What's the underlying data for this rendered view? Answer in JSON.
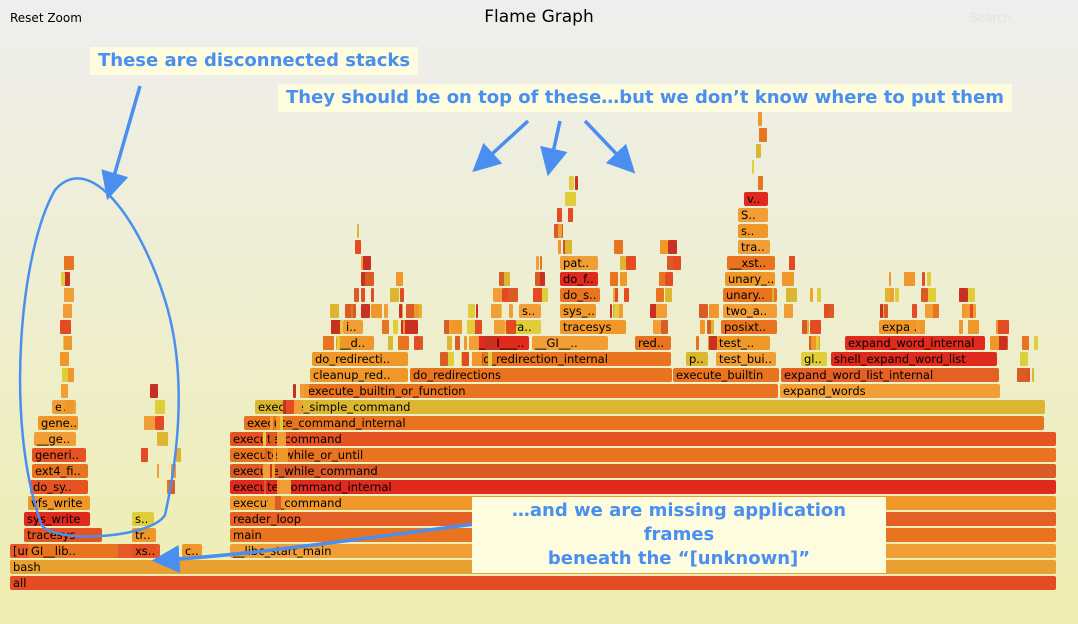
{
  "toolbar": {
    "reset_zoom": "Reset Zoom",
    "search": "Search"
  },
  "title": "Flame Graph",
  "annotations": {
    "disconnected": "These are disconnected stacks",
    "on_top": "They should be on top of these…but we don’t know where to put them",
    "missing_line1": "…and we are missing application frames",
    "missing_line2": "beneath the “[unknown]”"
  },
  "colors": {
    "annotation_text": "#4a8ff0",
    "annotation_bg": "#fdfcde",
    "flame_palette": [
      "#e54b22",
      "#e8741f",
      "#f0972a",
      "#dcb630",
      "#e0cd3a",
      "#c83022",
      "#f29e36",
      "#d95c27"
    ]
  },
  "frames": [
    {
      "label": "all",
      "color": "#e54b22"
    },
    {
      "label": "bash",
      "color": "#e8a030"
    },
    {
      "label": "[unknown]",
      "color": "#e55a26"
    },
    {
      "label": "__libc_start_main",
      "color": "#f29e36"
    },
    {
      "label": "main",
      "color": "#e8741f"
    },
    {
      "label": "reader_loop",
      "color": "#e56024"
    },
    {
      "label": "execute_command",
      "color": "#f0972a"
    },
    {
      "label": "execute_command_internal",
      "color": "#e02a1e"
    },
    {
      "label": "execute_while_command",
      "color": "#d95c27"
    },
    {
      "label": "execute_while_or_until",
      "color": "#e8741f"
    },
    {
      "label": "execute_command",
      "color": "#e55322"
    },
    {
      "label": "execute_command_internal",
      "color": "#e8741f"
    },
    {
      "label": "execute_simple_command",
      "color": "#dcb630"
    },
    {
      "label": "execute_builtin_or_function",
      "color": "#e8741f"
    },
    {
      "label": "expand_words",
      "color": "#f29e36"
    },
    {
      "label": "cleanup_red..",
      "color": "#f0972a"
    },
    {
      "label": "do_redirections",
      "color": "#e8741f"
    },
    {
      "label": "execute_builtin",
      "color": "#e8741f"
    },
    {
      "label": "expand_word_list_internal",
      "color": "#e56024"
    },
    {
      "label": "do_redirecti..",
      "color": "#f0972a"
    },
    {
      "label": "do_redirection_internal",
      "color": "#e8741f"
    },
    {
      "label": "p..",
      "color": "#dcb630"
    },
    {
      "label": "test_bui..",
      "color": "#f29e36"
    },
    {
      "label": "gl..",
      "color": "#e0cd3a"
    },
    {
      "label": "shell_expand_word_list",
      "color": "#e02a1e"
    },
    {
      "label": "__d..",
      "color": "#f0972a"
    },
    {
      "label": "__GI___..",
      "color": "#e02a1e"
    },
    {
      "label": "__GI__..",
      "color": "#f29e36"
    },
    {
      "label": "red..",
      "color": "#e8741f"
    },
    {
      "label": "test_..",
      "color": "#f0972a"
    },
    {
      "label": "expand_word_internal",
      "color": "#e02a1e"
    },
    {
      "label": "i..",
      "color": "#f29e36"
    },
    {
      "label": "tra..",
      "color": "#e0cd3a"
    },
    {
      "label": "tracesys",
      "color": "#f0972a"
    },
    {
      "label": "posixt..",
      "color": "#e8741f"
    },
    {
      "label": "expa..",
      "color": "#f0972a"
    },
    {
      "label": "s..",
      "color": "#f29e36"
    },
    {
      "label": "sys_..",
      "color": "#f0972a"
    },
    {
      "label": "two_a..",
      "color": "#f29e36"
    },
    {
      "label": "do_s..",
      "color": "#e8741f"
    },
    {
      "label": "unary..",
      "color": "#e8741f"
    },
    {
      "label": "do_f..",
      "color": "#e02a1e"
    },
    {
      "label": "unary_..",
      "color": "#f0972a"
    },
    {
      "label": "pat..",
      "color": "#f29e36"
    },
    {
      "label": "__xst..",
      "color": "#e8741f"
    },
    {
      "label": "tra..",
      "color": "#f29e36"
    },
    {
      "label": "s..",
      "color": "#f0972a"
    },
    {
      "label": "S..",
      "color": "#f29e36"
    },
    {
      "label": "v..",
      "color": "#e02a1e"
    },
    {
      "label": "GI__lib..",
      "color": "#e8741f"
    },
    {
      "label": "tracesys",
      "color": "#e55322"
    },
    {
      "label": "sys_write",
      "color": "#e02a1e"
    },
    {
      "label": "vfs_write",
      "color": "#f0972a"
    },
    {
      "label": "do_sy..",
      "color": "#e55322"
    },
    {
      "label": "ext4_fi..",
      "color": "#e8741f"
    },
    {
      "label": "generi..",
      "color": "#e55322"
    },
    {
      "label": "__ge..",
      "color": "#f29e36"
    },
    {
      "label": "gene..",
      "color": "#f0972a"
    },
    {
      "label": "e..",
      "color": "#f29e36"
    },
    {
      "label": "xs..",
      "color": "#e55322"
    },
    {
      "label": "tr..",
      "color": "#f0972a"
    },
    {
      "label": "s..",
      "color": "#e0cd3a"
    },
    {
      "label": "c..",
      "color": "#f0972a"
    }
  ]
}
